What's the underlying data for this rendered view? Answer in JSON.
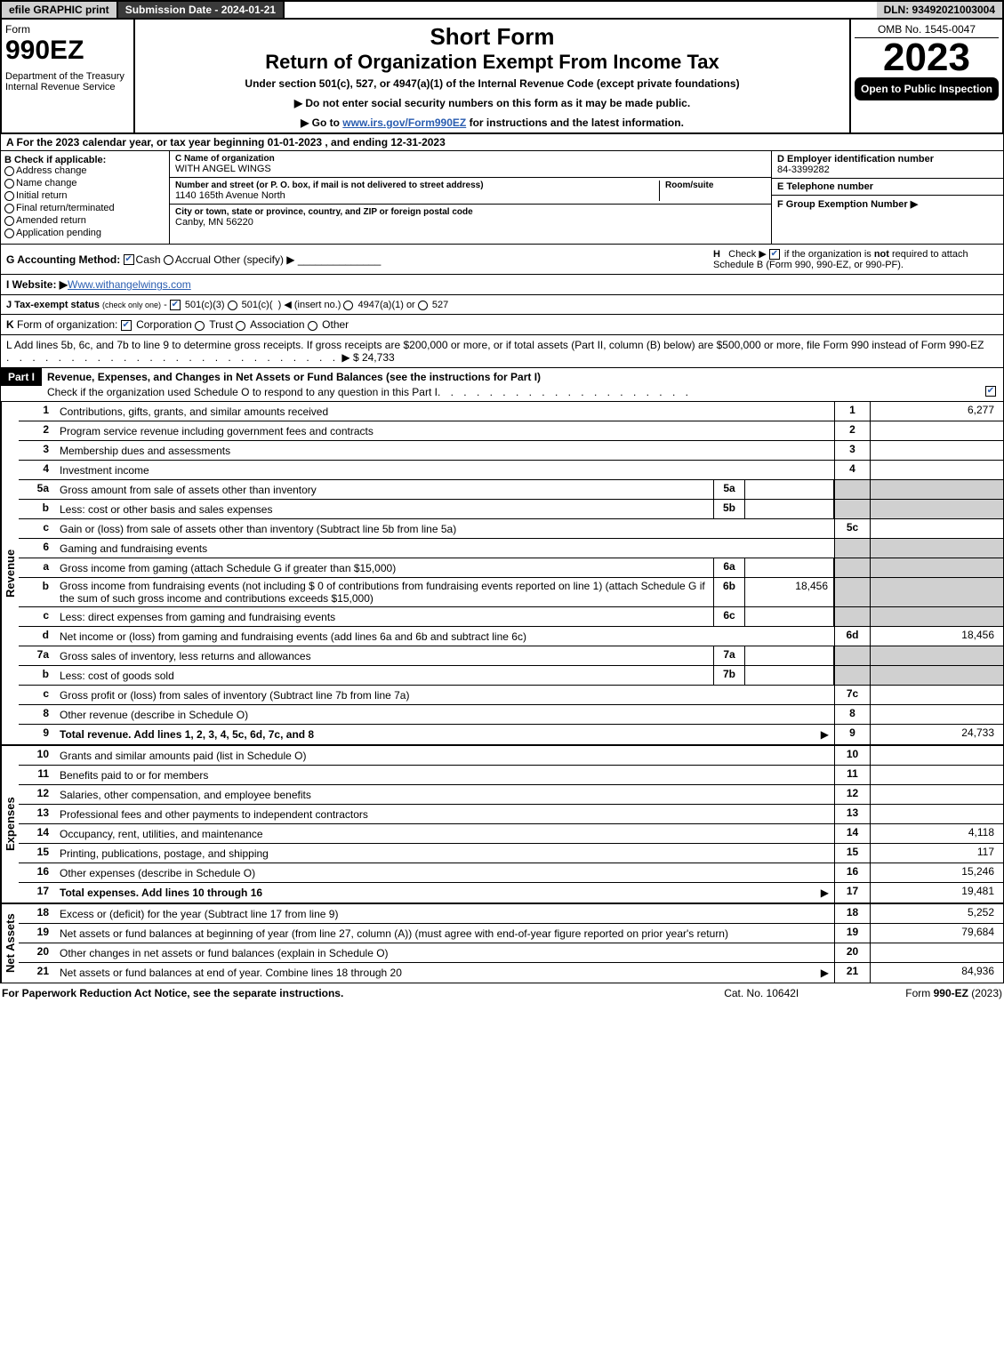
{
  "topbar": {
    "efile": "efile GRAPHIC print",
    "subdate": "Submission Date - 2024-01-21",
    "dln": "DLN: 93492021003004"
  },
  "header": {
    "form": "Form",
    "formnum": "990EZ",
    "dept": "Department of the Treasury",
    "irs": "Internal Revenue Service",
    "shortform": "Short Form",
    "title": "Return of Organization Exempt From Income Tax",
    "sub": "Under section 501(c), 527, or 4947(a)(1) of the Internal Revenue Code (except private foundations)",
    "note1": "▶ Do not enter social security numbers on this form as it may be made public.",
    "note2_pre": "▶ Go to ",
    "note2_link": "www.irs.gov/Form990EZ",
    "note2_post": " for instructions and the latest information.",
    "omb": "OMB No. 1545-0047",
    "year": "2023",
    "opento": "Open to Public Inspection"
  },
  "A": "A  For the 2023 calendar year, or tax year beginning 01-01-2023 , and ending 12-31-2023",
  "B": {
    "label": "B  Check if applicable:",
    "items": [
      "Address change",
      "Name change",
      "Initial return",
      "Final return/terminated",
      "Amended return",
      "Application pending"
    ]
  },
  "C": {
    "name_lbl": "C Name of organization",
    "name": "WITH ANGEL WINGS",
    "street_lbl": "Number and street (or P. O. box, if mail is not delivered to street address)",
    "room_lbl": "Room/suite",
    "street": "1140 165th Avenue North",
    "city_lbl": "City or town, state or province, country, and ZIP or foreign postal code",
    "city": "Canby, MN  56220"
  },
  "D": {
    "lbl": "D Employer identification number",
    "val": "84-3399282"
  },
  "E": {
    "lbl": "E Telephone number",
    "val": ""
  },
  "F": {
    "lbl": "F Group Exemption Number  ▶",
    "val": ""
  },
  "G": "G Accounting Method:",
  "G_cash": "Cash",
  "G_accrual": "Accrual",
  "G_other": "Other (specify) ▶",
  "H": "H   Check ▶      if the organization is not required to attach Schedule B (Form 990, 990-EZ, or 990-PF).",
  "I_lbl": "I Website: ▶",
  "I_val": "Www.withangelwings.com",
  "J": "J Tax-exempt status (check only one) -       501(c)(3)      501(c)(   ) ◀ (insert no.)      4947(a)(1) or      527",
  "K": "K Form of organization:       Corporation      Trust      Association      Other",
  "L_pre": "L Add lines 5b, 6c, and 7b to line 9 to determine gross receipts. If gross receipts are $200,000 or more, or if total assets (Part II, column (B) below) are $500,000 or more, file Form 990 instead of Form 990-EZ",
  "L_val": "▶ $ 24,733",
  "PartI": {
    "label": "Part I",
    "title": "Revenue, Expenses, and Changes in Net Assets or Fund Balances (see the instructions for Part I)",
    "sub": "Check if the organization used Schedule O to respond to any question in this Part I"
  },
  "lines_revenue": [
    {
      "n": "1",
      "d": "Contributions, gifts, grants, and similar amounts received",
      "rn": "1",
      "rv": "6,277"
    },
    {
      "n": "2",
      "d": "Program service revenue including government fees and contracts",
      "rn": "2",
      "rv": ""
    },
    {
      "n": "3",
      "d": "Membership dues and assessments",
      "rn": "3",
      "rv": ""
    },
    {
      "n": "4",
      "d": "Investment income",
      "rn": "4",
      "rv": ""
    },
    {
      "n": "5a",
      "d": "Gross amount from sale of assets other than inventory",
      "in": "5a",
      "iv": "",
      "shade": true
    },
    {
      "n": "b",
      "d": "Less: cost or other basis and sales expenses",
      "in": "5b",
      "iv": "",
      "shade": true
    },
    {
      "n": "c",
      "d": "Gain or (loss) from sale of assets other than inventory (Subtract line 5b from line 5a)",
      "rn": "5c",
      "rv": ""
    },
    {
      "n": "6",
      "d": "Gaming and fundraising events",
      "shade": true
    },
    {
      "n": "a",
      "d": "Gross income from gaming (attach Schedule G if greater than $15,000)",
      "in": "6a",
      "iv": "",
      "shade": true
    },
    {
      "n": "b",
      "d": "Gross income from fundraising events (not including $  0               of contributions from fundraising events reported on line 1) (attach Schedule G if the sum of such gross income and contributions exceeds $15,000)",
      "in": "6b",
      "iv": "18,456",
      "shade": true
    },
    {
      "n": "c",
      "d": "Less: direct expenses from gaming and fundraising events",
      "in": "6c",
      "iv": "",
      "shade": true
    },
    {
      "n": "d",
      "d": "Net income or (loss) from gaming and fundraising events (add lines 6a and 6b and subtract line 6c)",
      "rn": "6d",
      "rv": "18,456"
    },
    {
      "n": "7a",
      "d": "Gross sales of inventory, less returns and allowances",
      "in": "7a",
      "iv": "",
      "shade": true
    },
    {
      "n": "b",
      "d": "Less: cost of goods sold",
      "in": "7b",
      "iv": "",
      "shade": true
    },
    {
      "n": "c",
      "d": "Gross profit or (loss) from sales of inventory (Subtract line 7b from line 7a)",
      "rn": "7c",
      "rv": ""
    },
    {
      "n": "8",
      "d": "Other revenue (describe in Schedule O)",
      "rn": "8",
      "rv": ""
    },
    {
      "n": "9",
      "d": "Total revenue. Add lines 1, 2, 3, 4, 5c, 6d, 7c, and 8",
      "rn": "9",
      "rv": "24,733",
      "bold": true,
      "arrow": true
    }
  ],
  "lines_expenses": [
    {
      "n": "10",
      "d": "Grants and similar amounts paid (list in Schedule O)",
      "rn": "10",
      "rv": ""
    },
    {
      "n": "11",
      "d": "Benefits paid to or for members",
      "rn": "11",
      "rv": ""
    },
    {
      "n": "12",
      "d": "Salaries, other compensation, and employee benefits",
      "rn": "12",
      "rv": ""
    },
    {
      "n": "13",
      "d": "Professional fees and other payments to independent contractors",
      "rn": "13",
      "rv": ""
    },
    {
      "n": "14",
      "d": "Occupancy, rent, utilities, and maintenance",
      "rn": "14",
      "rv": "4,118"
    },
    {
      "n": "15",
      "d": "Printing, publications, postage, and shipping",
      "rn": "15",
      "rv": "117"
    },
    {
      "n": "16",
      "d": "Other expenses (describe in Schedule O)",
      "rn": "16",
      "rv": "15,246"
    },
    {
      "n": "17",
      "d": "Total expenses. Add lines 10 through 16",
      "rn": "17",
      "rv": "19,481",
      "bold": true,
      "arrow": true
    }
  ],
  "lines_net": [
    {
      "n": "18",
      "d": "Excess or (deficit) for the year (Subtract line 17 from line 9)",
      "rn": "18",
      "rv": "5,252"
    },
    {
      "n": "19",
      "d": "Net assets or fund balances at beginning of year (from line 27, column (A)) (must agree with end-of-year figure reported on prior year's return)",
      "rn": "19",
      "rv": "79,684"
    },
    {
      "n": "20",
      "d": "Other changes in net assets or fund balances (explain in Schedule O)",
      "rn": "20",
      "rv": ""
    },
    {
      "n": "21",
      "d": "Net assets or fund balances at end of year. Combine lines 18 through 20",
      "rn": "21",
      "rv": "84,936",
      "arrow": true
    }
  ],
  "footer": {
    "l": "For Paperwork Reduction Act Notice, see the separate instructions.",
    "c": "Cat. No. 10642I",
    "r": "Form 990-EZ (2023)"
  },
  "vlabels": {
    "revenue": "Revenue",
    "expenses": "Expenses",
    "net": "Net Assets"
  }
}
